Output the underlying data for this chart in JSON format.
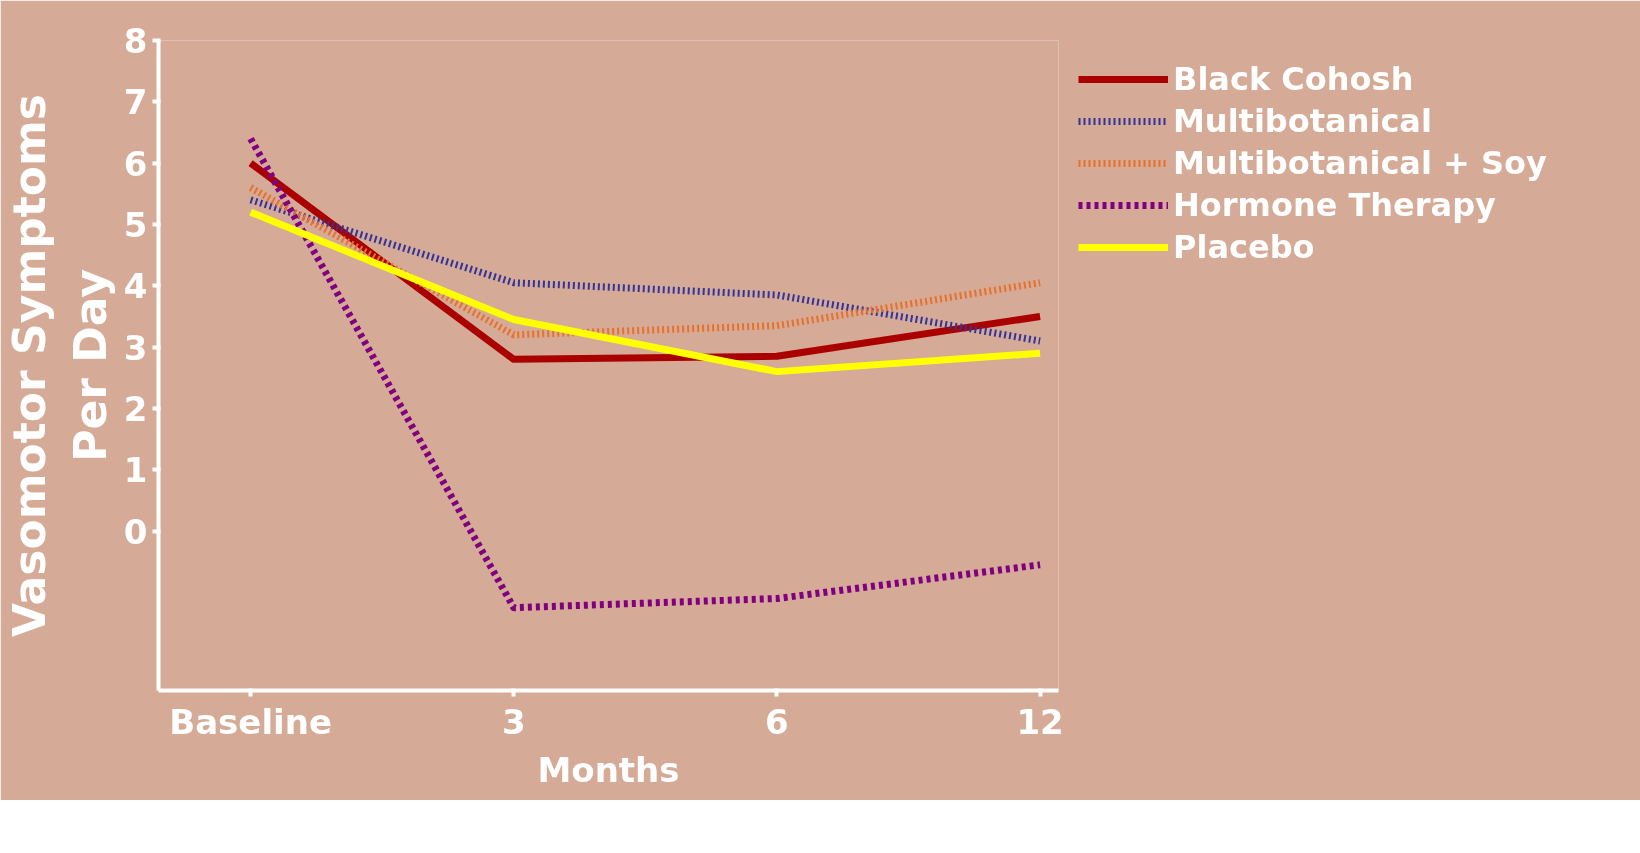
{
  "chart_data": {
    "type": "line",
    "xlabel": "Months",
    "ylabel": "Vasomotor Symptoms\nPer Day",
    "categories": [
      "Baseline",
      "3",
      "6",
      "12"
    ],
    "series": [
      {
        "name": "Black Cohosh",
        "color": "#aa0000",
        "line_style": "solid",
        "values": [
          6.0,
          2.8,
          2.85,
          3.5
        ]
      },
      {
        "name": "Multibotanical",
        "color": "#333399",
        "line_style": "dotted",
        "values": [
          5.4,
          4.05,
          3.85,
          3.1
        ]
      },
      {
        "name": "Multibotanical + Soy",
        "color": "#e8702a",
        "line_style": "dotted",
        "values": [
          5.6,
          3.2,
          3.35,
          4.05
        ]
      },
      {
        "name": "Hormone Therapy",
        "color": "#800080",
        "line_style": "dashed",
        "values": [
          6.4,
          -1.25,
          -1.1,
          -0.55
        ]
      },
      {
        "name": "Placebo",
        "color": "#ffff00",
        "line_style": "solid",
        "values": [
          5.2,
          3.45,
          2.6,
          2.9
        ]
      }
    ],
    "ylim": [
      -2.6,
      8
    ],
    "yticks": [
      0,
      1,
      2,
      3,
      4,
      5,
      6,
      7,
      8
    ],
    "grid": false,
    "legend": "top right",
    "marker": "none"
  }
}
